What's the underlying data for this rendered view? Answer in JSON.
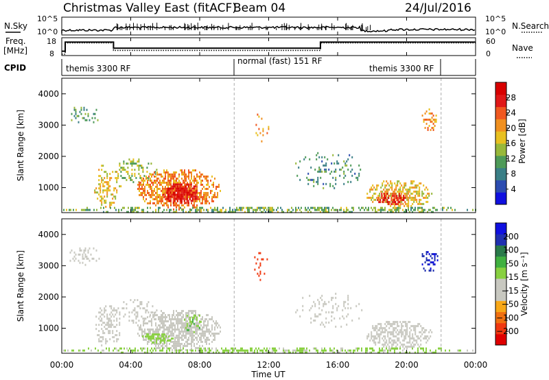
{
  "header": {
    "title": "Christmas Valley East (fitACF)",
    "beam": "Beam 04",
    "date": "24/Jul/2016"
  },
  "top_panels": {
    "nsky_label": "N.Sky",
    "nsearch_label": "N.Search",
    "nsky_ticks": [
      "10^5",
      "10^0"
    ],
    "nsearch_ticks": [
      "10^5",
      "10^0"
    ],
    "freq_label_1": "Freq.",
    "freq_label_2": "[MHz]",
    "freq_ticks": [
      "18",
      "8"
    ],
    "nave_label": "Nave",
    "nave_ticks": [
      "60",
      "0"
    ],
    "cpid_label": "CPID",
    "cpid_segments": [
      {
        "label": "themis 3300 RF",
        "start_h": 0,
        "end_h": 10
      },
      {
        "label": "normal (fast) 151 RF",
        "start_h": 10,
        "end_h": 22
      },
      {
        "label": "themis 3300 RF",
        "start_h": 22,
        "end_h": 24
      }
    ],
    "freq_series": {
      "x_h": [
        0,
        0.2,
        0.2,
        3,
        3,
        15,
        15,
        24
      ],
      "y_mhz": [
        10,
        10,
        16,
        16,
        12,
        12,
        16,
        16
      ]
    },
    "nave_series": {
      "x_h": [
        0,
        0.2,
        0.2,
        3,
        3,
        15,
        15,
        24
      ],
      "y": [
        0,
        0,
        45,
        45,
        15,
        15,
        45,
        45
      ]
    }
  },
  "chart_data": [
    {
      "type": "heatmap",
      "name": "power",
      "ylabel": "Slant Range [km]",
      "xlabel": "",
      "xlim_h": [
        0,
        24
      ],
      "ylim_km": [
        200,
        4500
      ],
      "y_ticks": [
        "1000",
        "2000",
        "3000",
        "4000"
      ],
      "colorbar_label": "Power [dB]",
      "colorbar_ticks": [
        "28",
        "24",
        "20",
        "16",
        "12",
        "8",
        "4"
      ],
      "colorbar_range": [
        0,
        30
      ],
      "colors": [
        "#1010e0",
        "#2c4cb0",
        "#3a7f86",
        "#4e9a58",
        "#98b83a",
        "#e8c020",
        "#f09020",
        "#f05820",
        "#e01818",
        "#d80000"
      ],
      "dashed_lines_h": [
        10,
        22
      ],
      "regions": [
        {
          "t0": 0.3,
          "t1": 2.2,
          "r0": 3050,
          "r1": 3650,
          "v": 10,
          "d": 0.25
        },
        {
          "t0": 1.8,
          "t1": 3.4,
          "r0": 400,
          "r1": 1800,
          "v": 17,
          "d": 0.35
        },
        {
          "t0": 3.0,
          "t1": 5.6,
          "r0": 1200,
          "r1": 2000,
          "v": 13,
          "d": 0.3
        },
        {
          "t0": 4.3,
          "t1": 9.2,
          "r0": 300,
          "r1": 1650,
          "v": 20,
          "d": 0.65
        },
        {
          "t0": 5.8,
          "t1": 8.0,
          "r0": 500,
          "r1": 1200,
          "v": 27,
          "d": 0.8
        },
        {
          "t0": 11.0,
          "t1": 12.0,
          "r0": 2500,
          "r1": 3500,
          "v": 19,
          "d": 0.1
        },
        {
          "t0": 13.3,
          "t1": 17.5,
          "r0": 1000,
          "r1": 2200,
          "v": 9,
          "d": 0.15
        },
        {
          "t0": 17.6,
          "t1": 21.5,
          "r0": 350,
          "r1": 1300,
          "v": 17,
          "d": 0.55
        },
        {
          "t0": 18.2,
          "t1": 20.0,
          "r0": 450,
          "r1": 900,
          "v": 25,
          "d": 0.6
        },
        {
          "t0": 20.8,
          "t1": 21.8,
          "r0": 2800,
          "r1": 3600,
          "v": 20,
          "d": 0.35
        },
        {
          "t0": 0.0,
          "t1": 24.0,
          "r0": 200,
          "r1": 450,
          "v": 12,
          "d": 0.45
        }
      ]
    },
    {
      "type": "heatmap",
      "name": "velocity",
      "ylabel": "Slant Range [km]",
      "xlabel": "Time UT",
      "xlim_h": [
        0,
        24
      ],
      "ylim_km": [
        200,
        4500
      ],
      "y_ticks": [
        "1000",
        "2000",
        "3000",
        "4000"
      ],
      "x_ticks": [
        "00:00",
        "04:00",
        "08:00",
        "12:00",
        "16:00",
        "20:00",
        "00:00"
      ],
      "colorbar_label": "Velocity [m s⁻¹]",
      "colorbar_ticks": [
        "200",
        "100",
        "50",
        "15",
        "−15",
        "−50",
        "−100",
        "−200"
      ],
      "colorbar_range": [
        -250,
        250
      ],
      "colors": [
        "#e00000",
        "#f03810",
        "#f07010",
        "#f8a818",
        "#c8c8c0",
        "#c8c8c0",
        "#88d040",
        "#40b040",
        "#2a7a4a",
        "#2030b0",
        "#1010e0"
      ],
      "dashed_lines_h": [
        10,
        22
      ],
      "regions": [
        {
          "t0": 0.3,
          "t1": 2.2,
          "r0": 3050,
          "r1": 3650,
          "v": 0,
          "d": 0.25
        },
        {
          "t0": 1.8,
          "t1": 3.4,
          "r0": 400,
          "r1": 1800,
          "v": 0,
          "d": 0.35
        },
        {
          "t0": 3.0,
          "t1": 5.6,
          "r0": 1200,
          "r1": 2000,
          "v": 0,
          "d": 0.3
        },
        {
          "t0": 4.3,
          "t1": 9.2,
          "r0": 300,
          "r1": 1650,
          "v": 0,
          "d": 0.65
        },
        {
          "t0": 4.5,
          "t1": 6.5,
          "r0": 550,
          "r1": 900,
          "v": 45,
          "d": 0.6
        },
        {
          "t0": 7.0,
          "t1": 8.2,
          "r0": 900,
          "r1": 1500,
          "v": 60,
          "d": 0.35
        },
        {
          "t0": 11.0,
          "t1": 12.0,
          "r0": 2500,
          "r1": 3500,
          "v": -180,
          "d": 0.1
        },
        {
          "t0": 13.3,
          "t1": 17.5,
          "r0": 1000,
          "r1": 2200,
          "v": 0,
          "d": 0.15
        },
        {
          "t0": 17.6,
          "t1": 21.5,
          "r0": 350,
          "r1": 1300,
          "v": 0,
          "d": 0.55
        },
        {
          "t0": 20.8,
          "t1": 21.8,
          "r0": 2800,
          "r1": 3600,
          "v": 200,
          "d": 0.35
        },
        {
          "t0": 0.0,
          "t1": 24.0,
          "r0": 200,
          "r1": 450,
          "v": 30,
          "d": 0.45
        }
      ]
    }
  ]
}
